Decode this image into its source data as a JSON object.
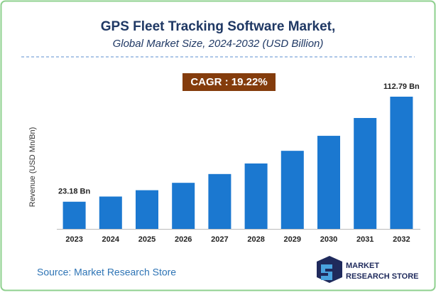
{
  "chart_data": {
    "type": "bar",
    "title": "GPS Fleet Tracking Software Market,",
    "subtitle": "Global Market Size, 2024-2032 (USD Billion)",
    "annotation": "CAGR : 19.22%",
    "y_axis_label": "Revenue (USD Mn/Bn)",
    "categories": [
      "2023",
      "2024",
      "2025",
      "2026",
      "2027",
      "2028",
      "2029",
      "2030",
      "2031",
      "2032"
    ],
    "values": [
      23.18,
      27.6,
      33.0,
      39.3,
      46.8,
      55.8,
      66.6,
      79.4,
      94.6,
      112.79
    ],
    "value_labels": [
      "23.18 Bn",
      null,
      null,
      null,
      null,
      null,
      null,
      null,
      null,
      "112.79 Bn"
    ],
    "color": "#1b78d0",
    "source": "Source: Market Research Store",
    "logo_lines": [
      "MARKET",
      "RESEARCH STORE"
    ]
  }
}
